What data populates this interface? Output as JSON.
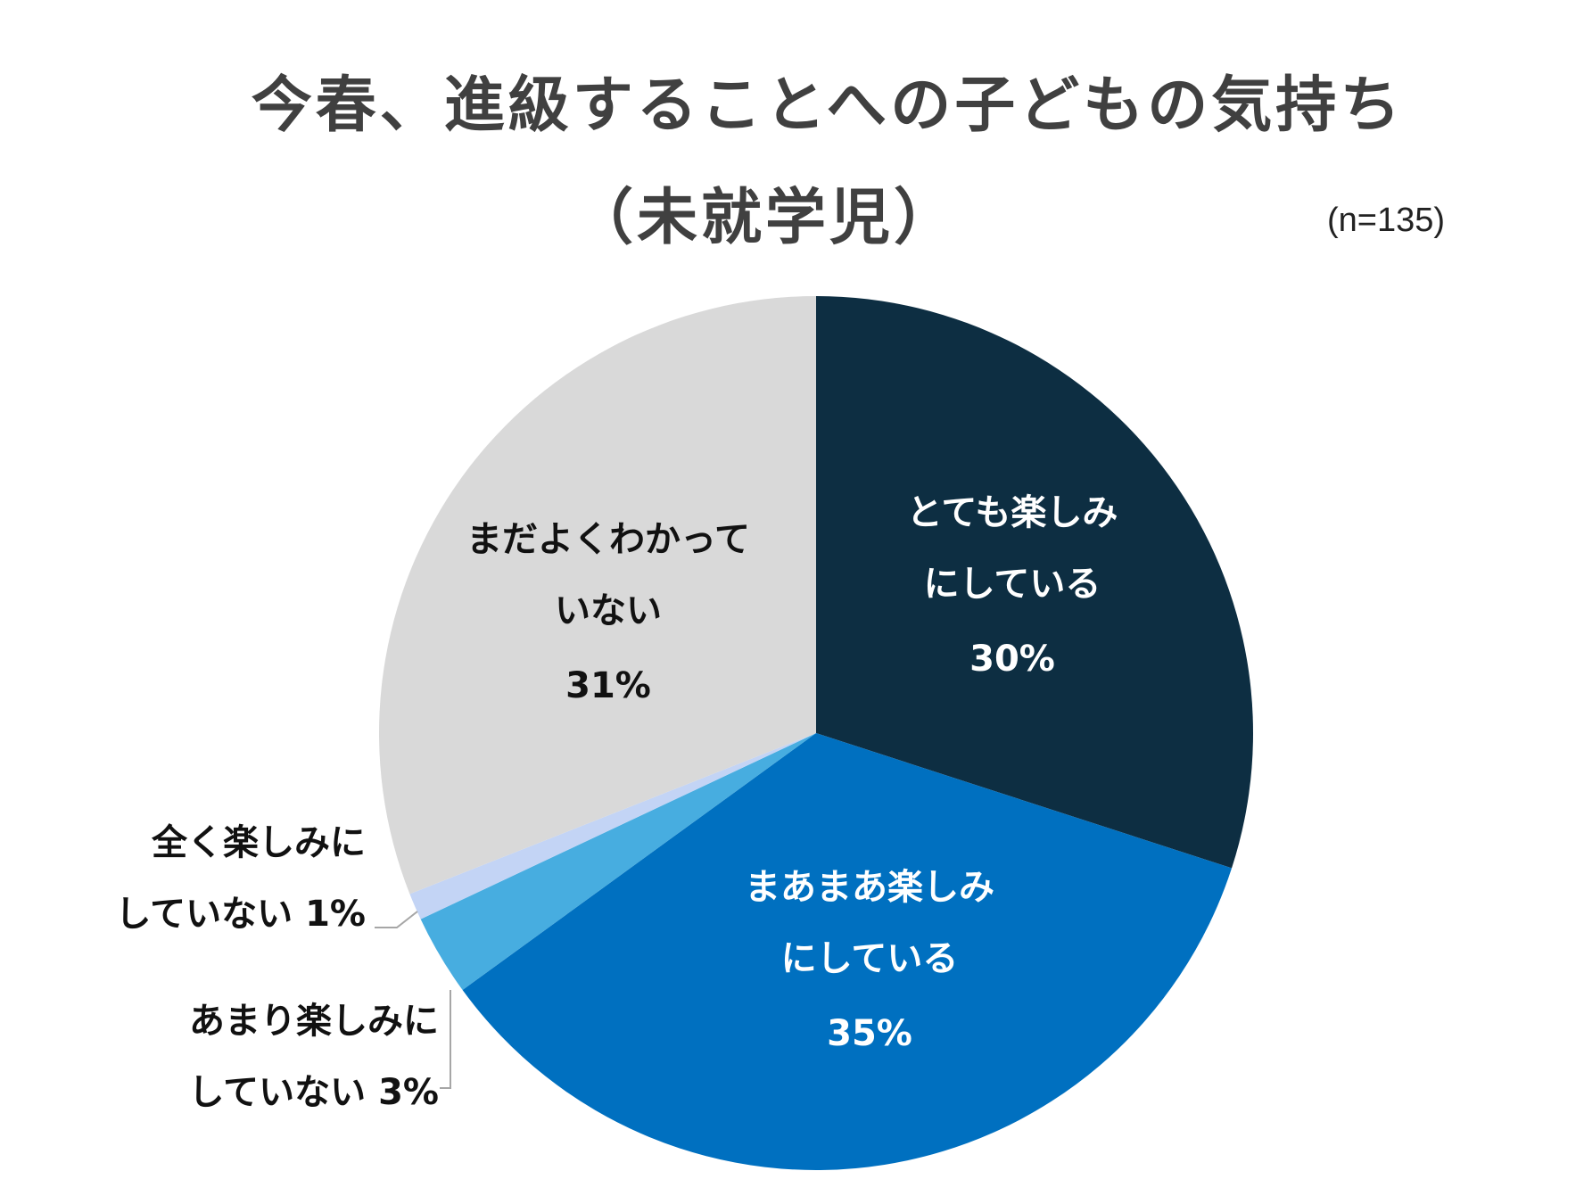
{
  "chart_data": {
    "type": "pie",
    "title": "今春、進級することへの子どもの気持ち",
    "subtitle": "（未就学児）",
    "sample_size": "(n=135)",
    "slices": [
      {
        "label_lines": [
          "とても楽しみ",
          "にしている"
        ],
        "value": 30,
        "value_label": "30%",
        "color": "#0d2e42",
        "text_color": "#ffffff"
      },
      {
        "label_lines": [
          "まあまあ楽しみ",
          "にしている"
        ],
        "value": 35,
        "value_label": "35%",
        "color": "#0070c0",
        "text_color": "#ffffff"
      },
      {
        "label_lines": [
          "あまり楽しみに",
          "していない 3%"
        ],
        "value": 3,
        "value_label": "",
        "color": "#47ade0",
        "text_color": "#111111"
      },
      {
        "label_lines": [
          "全く楽しみに",
          "していない 1%"
        ],
        "value": 1,
        "value_label": "",
        "color": "#c3d4f5",
        "text_color": "#111111"
      },
      {
        "label_lines": [
          "まだよくわかって",
          "いない"
        ],
        "value": 31,
        "value_label": "31%",
        "color": "#d9d9d9",
        "text_color": "#111111"
      }
    ]
  }
}
